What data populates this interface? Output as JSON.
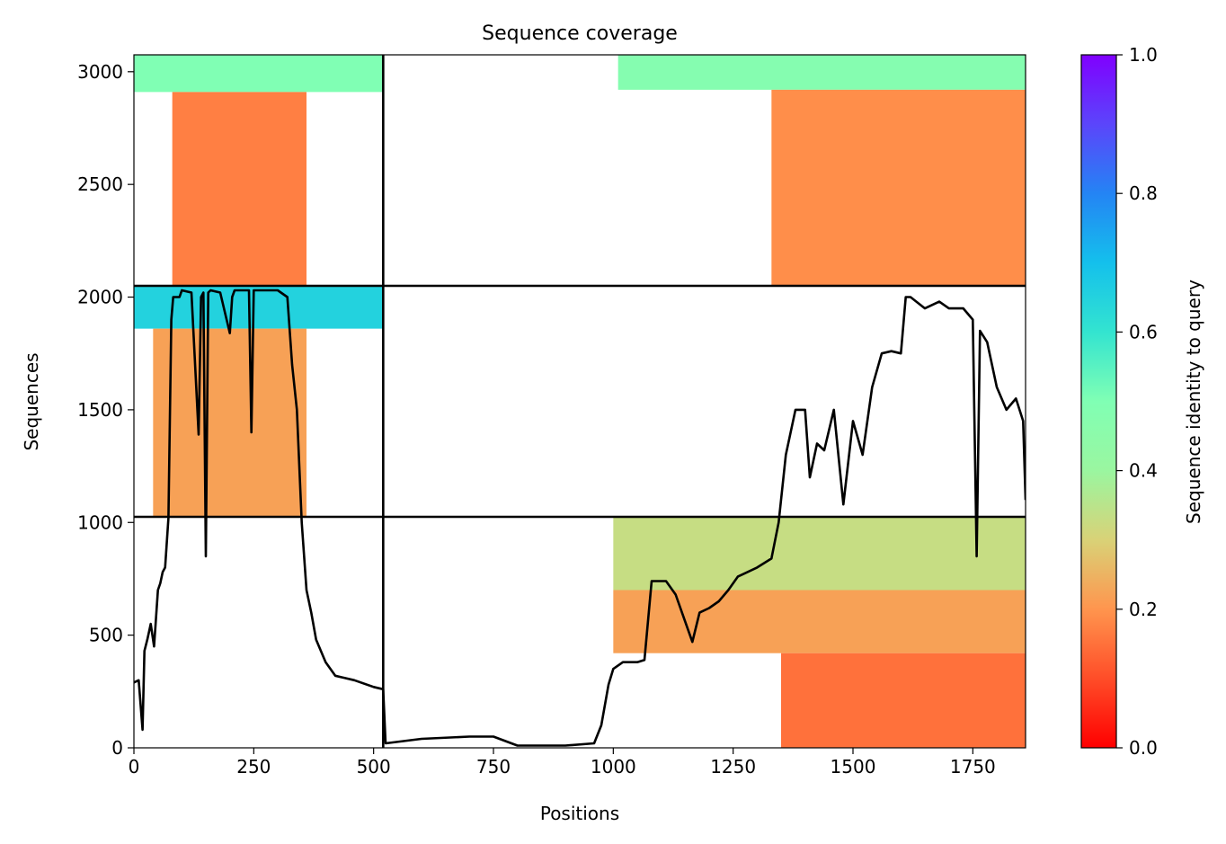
{
  "chart_data": {
    "type": "heatmap",
    "title": "Sequence coverage",
    "xlabel": "Positions",
    "ylabel": "Sequences",
    "xlim": [
      0,
      1860
    ],
    "ylim": [
      0,
      3075
    ],
    "x_ticks": [
      0,
      250,
      500,
      750,
      1000,
      1250,
      1500,
      1750
    ],
    "y_ticks": [
      0,
      500,
      1000,
      1500,
      2000,
      2500,
      3000
    ],
    "grid": false,
    "colorbar": {
      "label": "Sequence identity to query",
      "colormap": "rainbow_r",
      "range": [
        0,
        1
      ],
      "ticks": [
        0.0,
        0.2,
        0.4,
        0.6,
        0.8,
        1.0
      ]
    },
    "segment_boundaries_x": [
      520
    ],
    "segment_boundaries_y": [
      1025,
      2050
    ],
    "blocks": [
      {
        "x": [
          0,
          520
        ],
        "y": [
          2910,
          3075
        ],
        "identity": 0.5
      },
      {
        "x": [
          80,
          360
        ],
        "y": [
          2050,
          2910
        ],
        "identity": 0.17
      },
      {
        "x": [
          0,
          520
        ],
        "y": [
          1860,
          2050
        ],
        "identity": 0.65
      },
      {
        "x": [
          40,
          360
        ],
        "y": [
          1025,
          1860
        ],
        "identity": 0.22
      },
      {
        "x": [
          1010,
          1860
        ],
        "y": [
          2920,
          3075
        ],
        "identity": 0.48
      },
      {
        "x": [
          1330,
          1860
        ],
        "y": [
          2050,
          2920
        ],
        "identity": 0.19
      },
      {
        "x": [
          1000,
          1860
        ],
        "y": [
          700,
          1025
        ],
        "identity": 0.33
      },
      {
        "x": [
          1000,
          1860
        ],
        "y": [
          420,
          700
        ],
        "identity": 0.22
      },
      {
        "x": [
          1350,
          1860
        ],
        "y": [
          0,
          420
        ],
        "identity": 0.15
      }
    ],
    "coverage_line": {
      "x": [
        0,
        10,
        18,
        22,
        28,
        35,
        42,
        50,
        55,
        60,
        65,
        72,
        78,
        82,
        88,
        95,
        100,
        120,
        135,
        140,
        145,
        150,
        155,
        160,
        180,
        200,
        205,
        210,
        240,
        245,
        250,
        280,
        300,
        320,
        330,
        340,
        350,
        360,
        370,
        380,
        400,
        420,
        460,
        500,
        520,
        525,
        600,
        700,
        750,
        800,
        900,
        960,
        975,
        990,
        1000,
        1020,
        1050,
        1065,
        1080,
        1110,
        1130,
        1150,
        1165,
        1180,
        1200,
        1220,
        1240,
        1260,
        1280,
        1300,
        1330,
        1345,
        1360,
        1380,
        1400,
        1410,
        1425,
        1440,
        1460,
        1480,
        1500,
        1520,
        1540,
        1560,
        1580,
        1600,
        1610,
        1620,
        1650,
        1680,
        1700,
        1730,
        1750,
        1758,
        1765,
        1780,
        1800,
        1820,
        1840,
        1855,
        1860
      ],
      "y": [
        290,
        300,
        80,
        430,
        480,
        550,
        450,
        700,
        730,
        780,
        800,
        1020,
        1900,
        2000,
        2000,
        2000,
        2030,
        2020,
        1390,
        2000,
        2020,
        850,
        2020,
        2030,
        2020,
        1840,
        2000,
        2030,
        2030,
        1400,
        2030,
        2030,
        2030,
        2000,
        1700,
        1500,
        1000,
        700,
        600,
        480,
        380,
        320,
        300,
        270,
        260,
        20,
        40,
        50,
        50,
        10,
        10,
        20,
        100,
        280,
        350,
        380,
        380,
        390,
        740,
        740,
        680,
        560,
        470,
        600,
        620,
        650,
        700,
        760,
        780,
        800,
        840,
        1000,
        1300,
        1500,
        1500,
        1200,
        1350,
        1320,
        1500,
        1080,
        1450,
        1300,
        1600,
        1750,
        1760,
        1750,
        2000,
        2000,
        1950,
        1980,
        1950,
        1950,
        1900,
        850,
        1850,
        1800,
        1600,
        1500,
        1550,
        1450,
        1100
      ]
    }
  }
}
